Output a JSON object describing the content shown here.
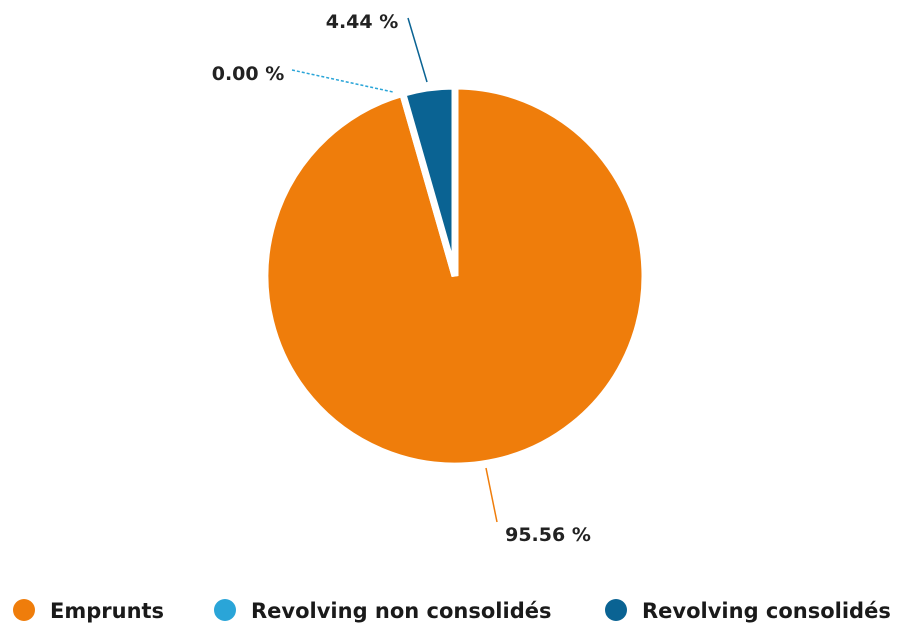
{
  "chart_data": {
    "type": "pie",
    "title": "",
    "start_angle_deg": 0,
    "direction": "clockwise",
    "legend_position": "bottom",
    "slices": [
      {
        "label": "Emprunts",
        "value": 95.56,
        "display": "95.56 %",
        "color": "#ef7d0b"
      },
      {
        "label": "Revolving non consolidés",
        "value": 0.0,
        "display": "0.00 %",
        "color": "#2aa5d8"
      },
      {
        "label": "Revolving consolidés",
        "value": 4.44,
        "display": "4.44 %",
        "color": "#0a6393"
      }
    ]
  }
}
